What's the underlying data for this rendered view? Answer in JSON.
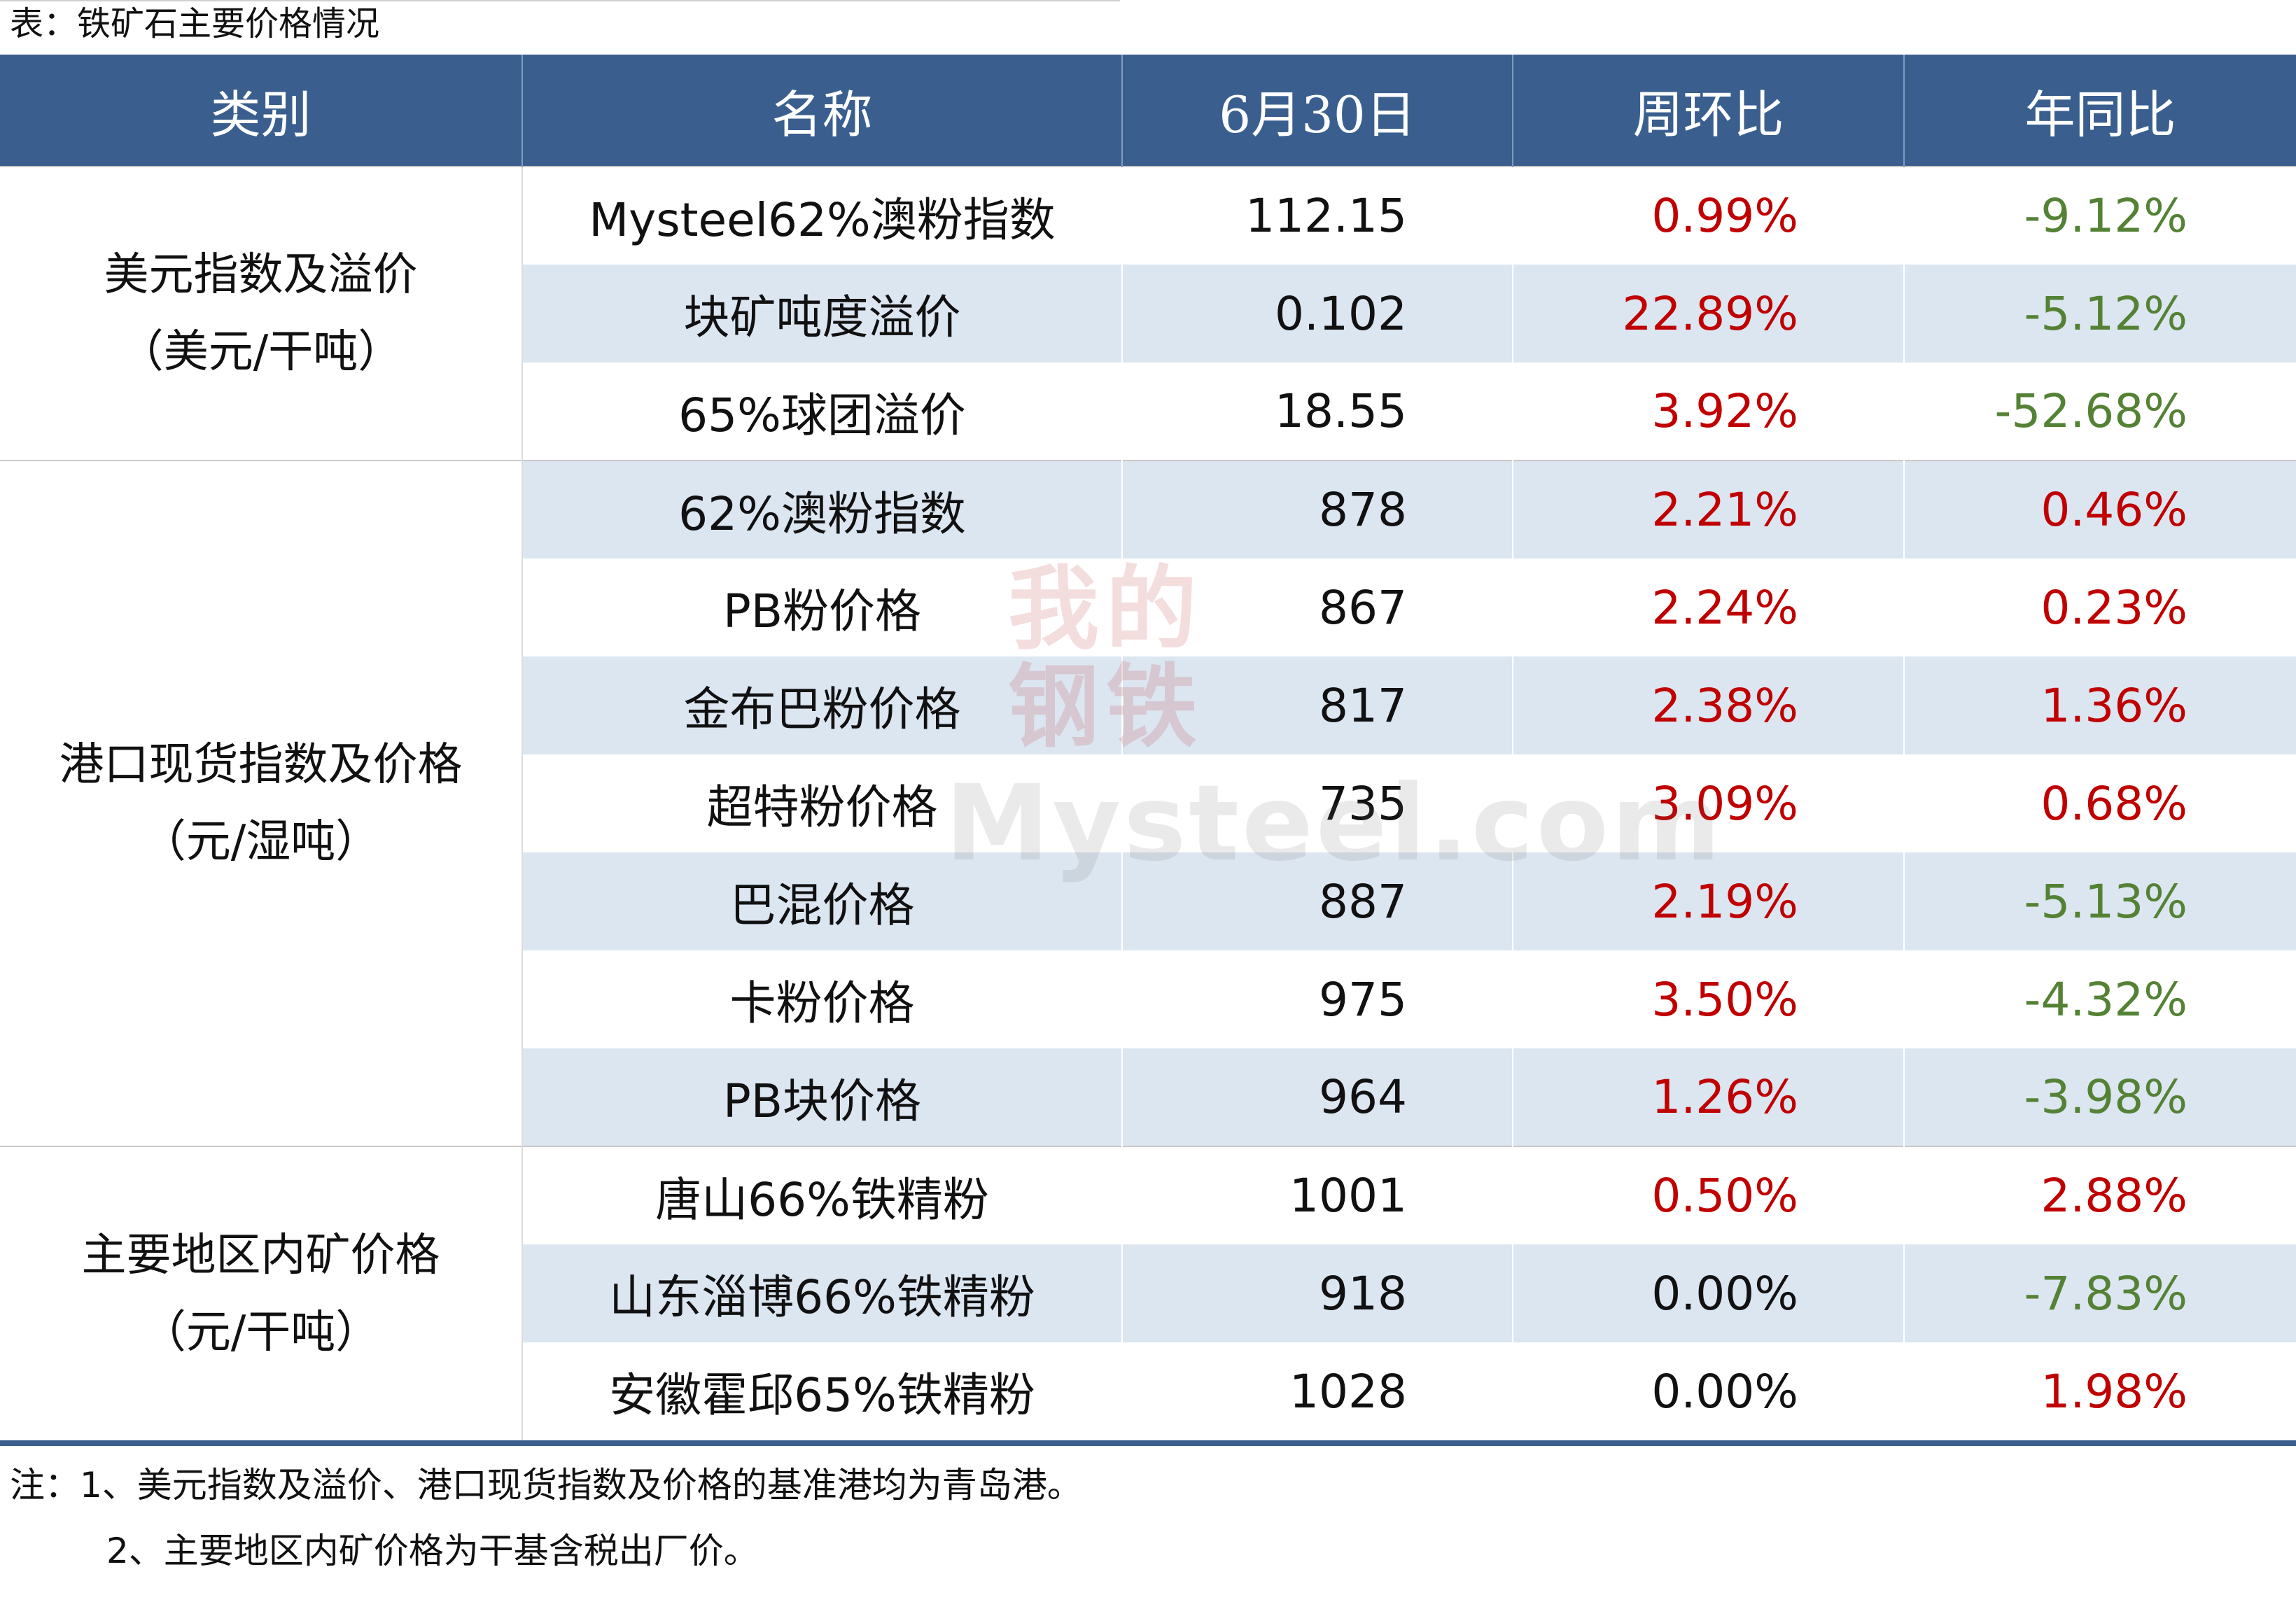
{
  "caption": "表：铁矿石主要价格情况",
  "header": {
    "category": "类别",
    "name": "名称",
    "date": "6月30日",
    "wow": "周环比",
    "yoy": "年同比"
  },
  "groups": [
    {
      "label_line1": "美元指数及溢价",
      "label_line2": "（美元/干吨）",
      "rows": [
        {
          "name": "Mysteel62%澳粉指数",
          "value": "112.15",
          "wow": "0.99%",
          "yoy": "-9.12%"
        },
        {
          "name": "块矿吨度溢价",
          "value": "0.102",
          "wow": "22.89%",
          "yoy": "-5.12%"
        },
        {
          "name": "65%球团溢价",
          "value": "18.55",
          "wow": "3.92%",
          "yoy": "-52.68%"
        }
      ]
    },
    {
      "label_line1": "港口现货指数及价格",
      "label_line2": "（元/湿吨）",
      "rows": [
        {
          "name": "62%澳粉指数",
          "value": "878",
          "wow": "2.21%",
          "yoy": "0.46%"
        },
        {
          "name": "PB粉价格",
          "value": "867",
          "wow": "2.24%",
          "yoy": "0.23%"
        },
        {
          "name": "金布巴粉价格",
          "value": "817",
          "wow": "2.38%",
          "yoy": "1.36%"
        },
        {
          "name": "超特粉价格",
          "value": "735",
          "wow": "3.09%",
          "yoy": "0.68%"
        },
        {
          "name": "巴混价格",
          "value": "887",
          "wow": "2.19%",
          "yoy": "-5.13%"
        },
        {
          "name": "卡粉价格",
          "value": "975",
          "wow": "3.50%",
          "yoy": "-4.32%"
        },
        {
          "name": "PB块价格",
          "value": "964",
          "wow": "1.26%",
          "yoy": "-3.98%"
        }
      ]
    },
    {
      "label_line1": "主要地区内矿价格",
      "label_line2": "（元/干吨）",
      "rows": [
        {
          "name": "唐山66%铁精粉",
          "value": "1001",
          "wow": "0.50%",
          "yoy": "2.88%"
        },
        {
          "name": "山东淄博66%铁精粉",
          "value": "918",
          "wow": "0.00%",
          "yoy": "-7.83%"
        },
        {
          "name": "安徽霍邱65%铁精粉",
          "value": "1028",
          "wow": "0.00%",
          "yoy": "1.98%"
        }
      ]
    }
  ],
  "notes": {
    "line1": "注：1、美元指数及溢价、港口现货指数及价格的基准港均为青岛港。",
    "line2": "2、主要地区内矿价格为干基含税出厂价。"
  },
  "watermark": {
    "cn": "我的钢铁",
    "en": "Mysteel.com"
  },
  "colors": {
    "header_bg": "#3a5f8f",
    "stripe": "#dce6f1",
    "positive": "#c00000",
    "negative": "#548235"
  }
}
